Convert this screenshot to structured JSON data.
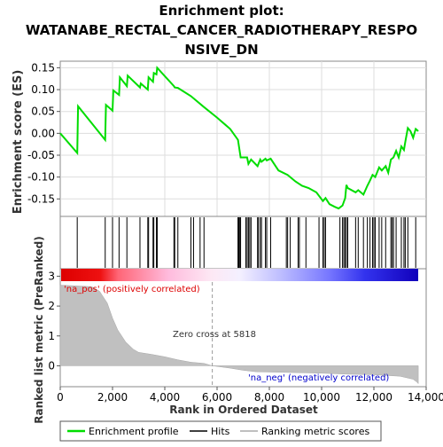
{
  "chart_data": {
    "type": "line",
    "title": "Enrichment plot: WATANABE_RECTAL_CANCER_RADIOTHERAPY_RESPONSIVE_DN",
    "title_lines": [
      "Enrichment plot:",
      "WATANABE_RECTAL_CANCER_RADIOTHERAPY_RESPO",
      "NSIVE_DN"
    ],
    "es_panel": {
      "ylabel": "Enrichment score (ES)",
      "ylim": [
        -0.19,
        0.165
      ],
      "yticks": [
        0.15,
        0.1,
        0.05,
        0.0,
        -0.05,
        -0.1,
        -0.15
      ],
      "ytick_labels": [
        "0.15",
        "0.10",
        "0.05",
        "0.00",
        "-0.05",
        "-0.10",
        "-0.15"
      ],
      "grid": true,
      "series": [
        {
          "name": "Enrichment profile",
          "color": "#00dd00",
          "x": [
            0,
            650,
            680,
            1720,
            1750,
            2000,
            2030,
            2250,
            2280,
            2550,
            2580,
            3050,
            3080,
            3350,
            3380,
            3550,
            3580,
            3680,
            3710,
            4350,
            4380,
            4500,
            5000,
            5500,
            6000,
            6500,
            6800,
            6900,
            7150,
            7200,
            7300,
            7550,
            7650,
            7700,
            7850,
            7900,
            8050,
            8350,
            8700,
            9000,
            9250,
            9500,
            9800,
            10050,
            10150,
            10300,
            10500,
            10650,
            10800,
            10900,
            10950,
            11000,
            11300,
            11400,
            11600,
            11750,
            11850,
            11950,
            12050,
            12200,
            12300,
            12450,
            12550,
            12650,
            12750,
            12850,
            12950,
            13050,
            13150,
            13200,
            13300,
            13400,
            13500,
            13600,
            13700
          ],
          "y": [
            0.0,
            -0.045,
            0.062,
            -0.015,
            0.065,
            0.052,
            0.098,
            0.088,
            0.128,
            0.108,
            0.132,
            0.105,
            0.114,
            0.1,
            0.128,
            0.118,
            0.138,
            0.135,
            0.15,
            0.108,
            0.105,
            0.104,
            0.085,
            0.06,
            0.036,
            0.01,
            -0.015,
            -0.055,
            -0.055,
            -0.07,
            -0.06,
            -0.075,
            -0.06,
            -0.065,
            -0.058,
            -0.062,
            -0.058,
            -0.085,
            -0.095,
            -0.11,
            -0.12,
            -0.125,
            -0.135,
            -0.155,
            -0.148,
            -0.162,
            -0.168,
            -0.172,
            -0.165,
            -0.148,
            -0.118,
            -0.125,
            -0.135,
            -0.13,
            -0.14,
            -0.12,
            -0.108,
            -0.095,
            -0.1,
            -0.078,
            -0.085,
            -0.075,
            -0.09,
            -0.06,
            -0.055,
            -0.04,
            -0.055,
            -0.03,
            -0.038,
            -0.02,
            0.012,
            0.005,
            -0.01,
            0.01,
            0.005
          ]
        }
      ]
    },
    "hits_panel": {
      "legend_name": "Hits",
      "hit_positions": [
        650,
        1720,
        2000,
        2250,
        2550,
        3050,
        3350,
        3380,
        3550,
        3580,
        3680,
        3710,
        4350,
        4380,
        4500,
        5000,
        5100,
        5350,
        5500,
        6800,
        6830,
        6870,
        6900,
        7100,
        7150,
        7200,
        7250,
        7300,
        7550,
        7580,
        7650,
        7700,
        7850,
        7900,
        8050,
        8650,
        8700,
        8800,
        9100,
        9150,
        9400,
        9900,
        10050,
        10100,
        10150,
        10700,
        10800,
        10850,
        10900,
        10950,
        11000,
        11300,
        11400,
        11600,
        11750,
        11850,
        11950,
        12000,
        12050,
        12200,
        12300,
        12450,
        12650,
        12700,
        12750,
        12850,
        13050,
        13150,
        13200,
        13300,
        13600
      ]
    },
    "ranked_panel": {
      "ylabel": "Ranked list metric (PreRanked)",
      "xlabel": "Rank in Ordered Dataset",
      "ylim": [
        -0.7,
        3.25
      ],
      "yticks": [
        0,
        1,
        2,
        3
      ],
      "ytick_labels": [
        "0",
        "1",
        "2",
        "3"
      ],
      "xlim": [
        0,
        14000
      ],
      "xticks": [
        0,
        2000,
        4000,
        6000,
        8000,
        10000,
        12000,
        14000
      ],
      "xtick_labels": [
        "0",
        "2,000",
        "4,000",
        "6,000",
        "8,000",
        "10,000",
        "12,000",
        "14,000"
      ],
      "metric_x": [
        0,
        1200,
        1500,
        1800,
        2000,
        2200,
        2500,
        2800,
        3000,
        3500,
        4000,
        4500,
        5000,
        5500,
        5818,
        6500,
        7000,
        7500,
        8500,
        10000,
        11000,
        12000,
        13000,
        13500,
        13650,
        13700
      ],
      "metric_y": [
        2.7,
        2.65,
        2.5,
        2.1,
        1.6,
        1.2,
        0.8,
        0.55,
        0.45,
        0.38,
        0.3,
        0.2,
        0.12,
        0.08,
        0.0,
        -0.08,
        -0.15,
        -0.2,
        -0.22,
        -0.25,
        -0.28,
        -0.3,
        -0.35,
        -0.45,
        -0.55,
        -0.6
      ],
      "pos_label": "'na_pos' (positively correlated)",
      "neg_label": "'na_neg' (negatively correlated)",
      "zero_cross_label": "Zero cross at 5818",
      "zero_cross": 5818
    },
    "legend": {
      "placement": "bottom",
      "entries": [
        "Enrichment profile",
        "Hits",
        "Ranking metric scores"
      ]
    }
  },
  "colors": {
    "es_line": "#00dd00",
    "hits": "#000000",
    "metric_fill": "#c0c0c0",
    "pos_label": "#dd0000",
    "neg_label": "#0000cc",
    "grid": "#dddddd"
  }
}
